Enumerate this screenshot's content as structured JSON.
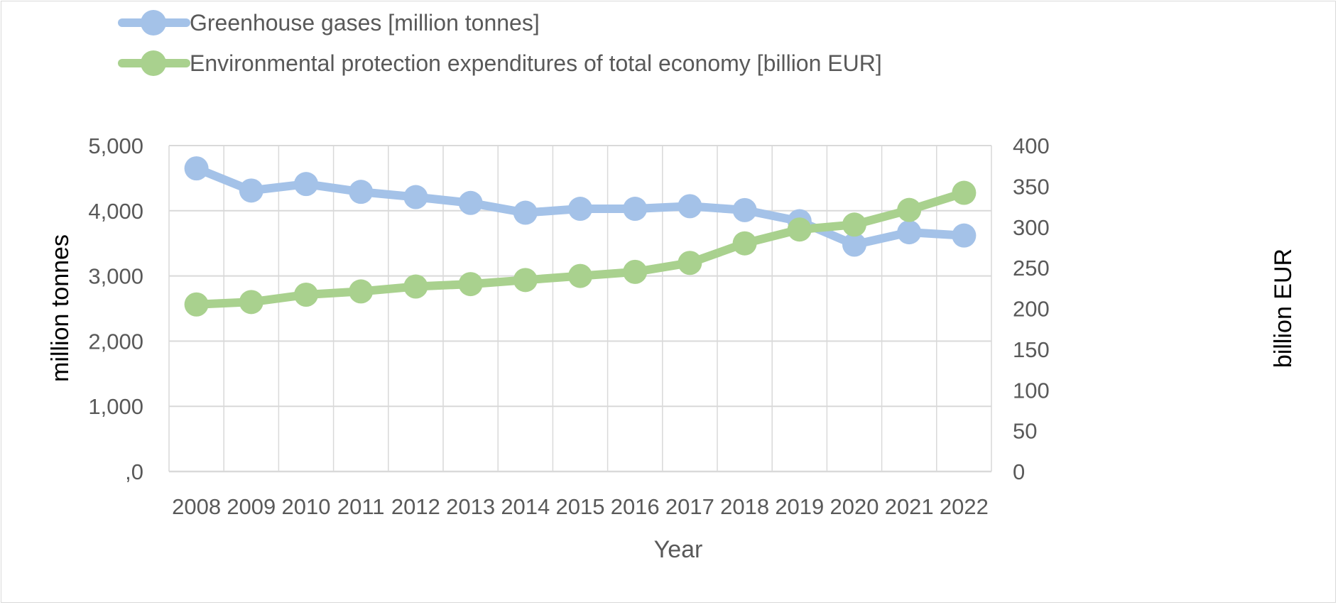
{
  "colors": {
    "ghg": "#a4c2e8",
    "epe": "#a9d18e",
    "grid": "#d9d9d9",
    "text": "#595959"
  },
  "chart_data": {
    "type": "line",
    "x": [
      "2008",
      "2009",
      "2010",
      "2011",
      "2012",
      "2013",
      "2014",
      "2015",
      "2016",
      "2017",
      "2018",
      "2019",
      "2020",
      "2021",
      "2022"
    ],
    "xlabel": "Year",
    "ylabel_left": "million tonnes",
    "ylabel_right": "billion EUR",
    "ylim_left": [
      0,
      5000
    ],
    "ylim_right": [
      0,
      400
    ],
    "yticks_left": [
      "5,000",
      "4,000",
      "3,000",
      "2,000",
      "1,000",
      ",0"
    ],
    "yticks_right": [
      "400",
      "350",
      "300",
      "250",
      "200",
      "150",
      "100",
      "50",
      "0"
    ],
    "legend_position": "top-left",
    "grid": true,
    "series": [
      {
        "name": "Greenhouse gases [million tonnes]",
        "axis": "left",
        "values": [
          4650,
          4310,
          4410,
          4290,
          4210,
          4120,
          3970,
          4030,
          4030,
          4070,
          4010,
          3840,
          3480,
          3670,
          3620
        ]
      },
      {
        "name": "Environmental protection expenditures of total economy [billion EUR]",
        "axis": "right",
        "values": [
          205,
          208,
          217,
          221,
          227,
          230,
          235,
          240,
          245,
          256,
          280,
          297,
          303,
          321,
          342
        ]
      }
    ]
  }
}
